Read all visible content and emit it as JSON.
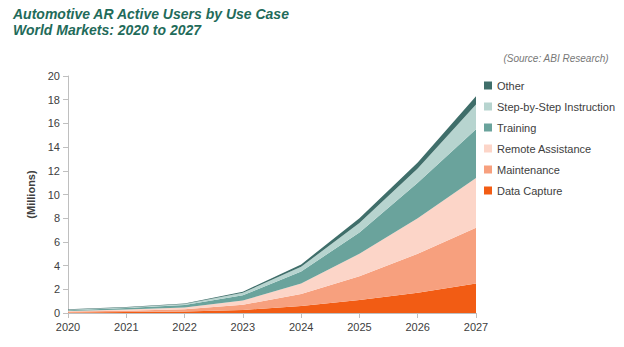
{
  "chart_data": {
    "type": "area",
    "title": "Automotive AR Active Users by Use Case",
    "subtitle": "World Markets: 2020 to 2027",
    "annotations": [
      "(Source: ABI Research)"
    ],
    "ylabel": "(Millions)",
    "categories": [
      "2020",
      "2021",
      "2022",
      "2023",
      "2024",
      "2025",
      "2026",
      "2027"
    ],
    "series": [
      {
        "name": "Data Capture",
        "color": "#f25c14",
        "values": [
          0.05,
          0.08,
          0.12,
          0.25,
          0.6,
          1.1,
          1.7,
          2.5
        ]
      },
      {
        "name": "Maintenance",
        "color": "#f7a07e",
        "values": [
          0.07,
          0.12,
          0.2,
          0.45,
          1.0,
          2.0,
          3.3,
          4.7
        ]
      },
      {
        "name": "Remote Assistance",
        "color": "#fcd5c8",
        "values": [
          0.05,
          0.1,
          0.15,
          0.35,
          0.9,
          1.9,
          3.0,
          4.2
        ]
      },
      {
        "name": "Training",
        "color": "#6aa39c",
        "values": [
          0.07,
          0.12,
          0.2,
          0.45,
          1.0,
          1.8,
          3.0,
          4.1
        ]
      },
      {
        "name": "Step-by-Step Instruction",
        "color": "#b7d4cf",
        "values": [
          0.04,
          0.05,
          0.08,
          0.2,
          0.4,
          0.8,
          1.2,
          2.1
        ]
      },
      {
        "name": "Other",
        "color": "#3f6e6a",
        "values": [
          0.03,
          0.04,
          0.05,
          0.1,
          0.2,
          0.4,
          0.5,
          0.7
        ]
      }
    ],
    "ylim": [
      0,
      20
    ],
    "yticks": [
      0,
      2,
      4,
      6,
      8,
      10,
      12,
      14,
      16,
      18,
      20
    ],
    "stacked": true,
    "grid": false,
    "legend": "right"
  }
}
